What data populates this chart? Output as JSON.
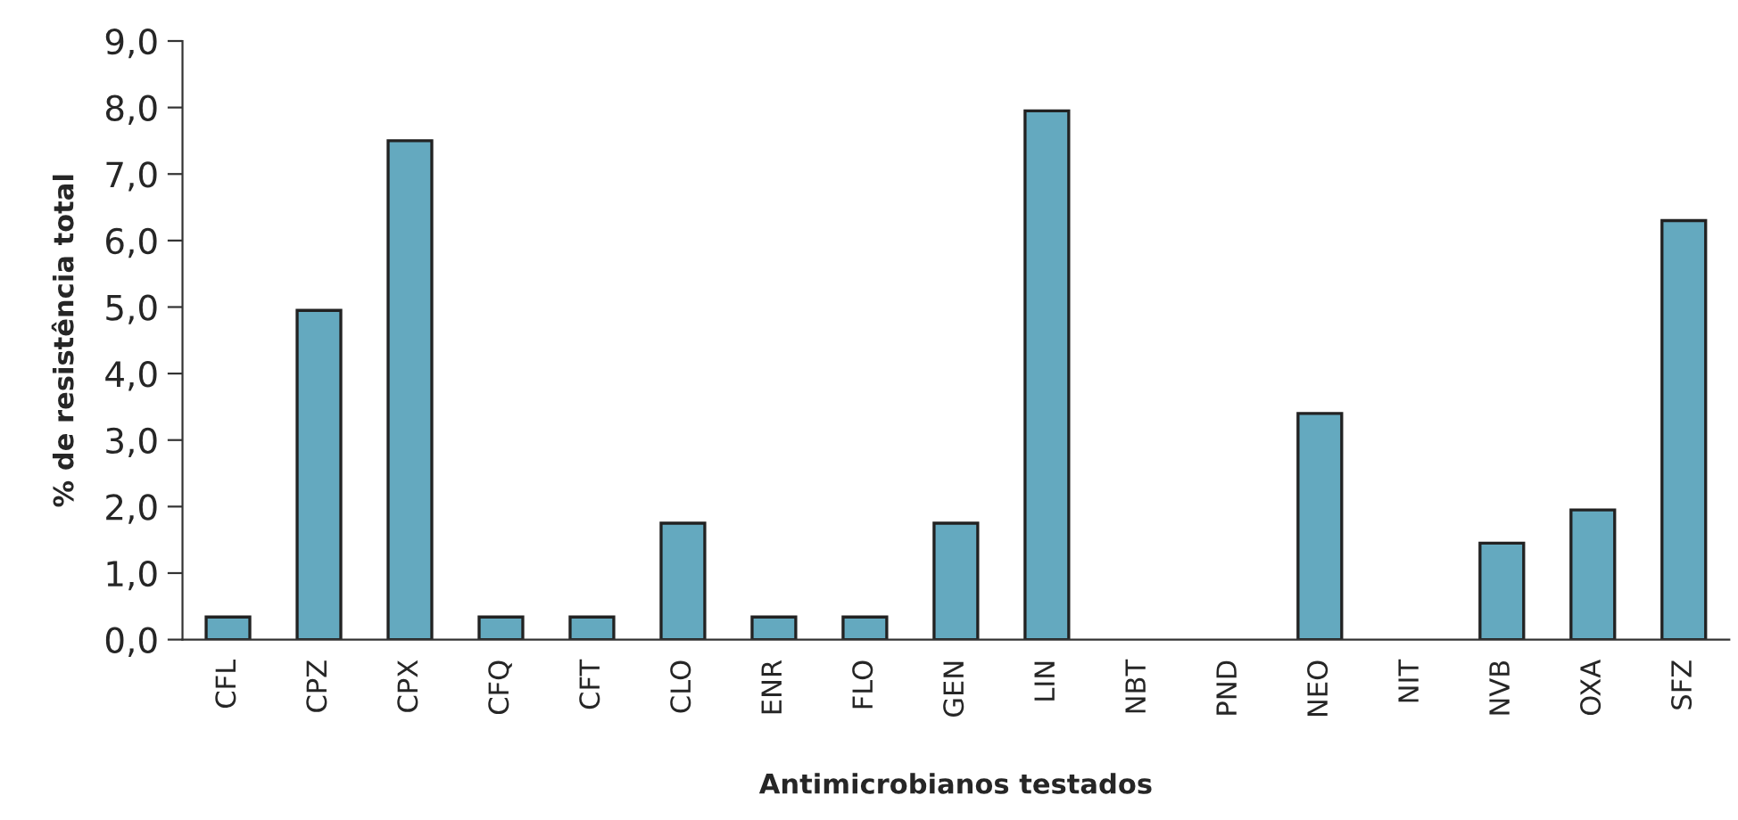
{
  "chart_data": {
    "type": "bar",
    "xlabel": "Antimicrobianos testados",
    "ylabel": "% de resistência total",
    "categories": [
      "CFL",
      "CPZ",
      "CPX",
      "CFQ",
      "CFT",
      "CLO",
      "ENR",
      "FLO",
      "GEN",
      "LIN",
      "NBT",
      "PND",
      "NEO",
      "NIT",
      "NVB",
      "OXA",
      "SFZ"
    ],
    "values": [
      0.34,
      4.95,
      7.5,
      0.34,
      0.34,
      1.75,
      0.34,
      0.34,
      1.75,
      7.95,
      0,
      0,
      3.4,
      0,
      1.45,
      1.95,
      6.3
    ],
    "color": "#64a9bf",
    "ylim": [
      0,
      9
    ],
    "yticks": [
      {
        "value": 0,
        "label": "0,0"
      },
      {
        "value": 1,
        "label": "1,0"
      },
      {
        "value": 2,
        "label": "2,0"
      },
      {
        "value": 3,
        "label": "3,0"
      },
      {
        "value": 4,
        "label": "4,0"
      },
      {
        "value": 5,
        "label": "5,0"
      },
      {
        "value": 6,
        "label": "6,0"
      },
      {
        "value": 7,
        "label": "7,0"
      },
      {
        "value": 8,
        "label": "8,0"
      },
      {
        "value": 9,
        "label": "9,0"
      }
    ],
    "grid": false
  }
}
